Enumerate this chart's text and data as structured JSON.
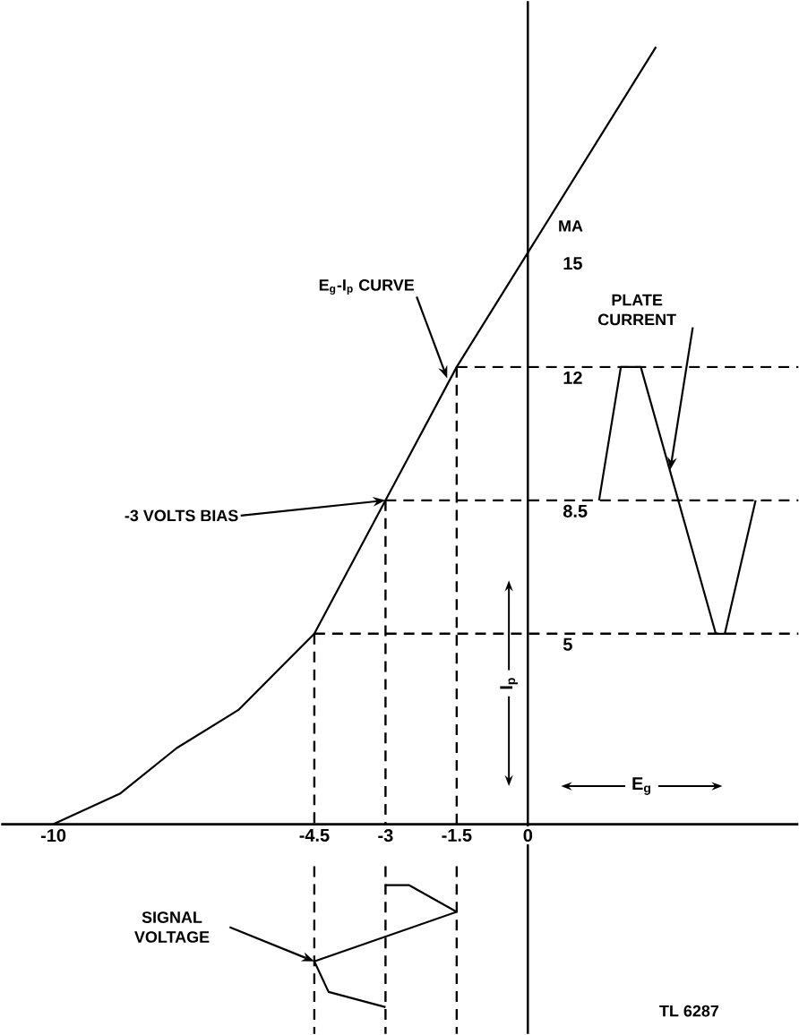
{
  "chart_data": {
    "type": "line",
    "xlabel": "E$_{g}$",
    "ylabel": "I$_{p}$",
    "xlim": [
      -11.1,
      5.7
    ],
    "ylim": [
      -5.5,
      21.6
    ],
    "xticks": [
      -10,
      -4.5,
      -3,
      -1.5,
      0
    ],
    "yticks": [
      5,
      8.5,
      12,
      15
    ],
    "series": [
      {
        "color": "#000000",
        "x": [
          -10,
          -8.6,
          -7.4,
          -6.1,
          -4.5,
          -3,
          -1.5,
          0,
          2.7
        ],
        "values": [
          0,
          0.8,
          2.0,
          3.0,
          5,
          8.5,
          12,
          15,
          20.4
        ]
      },
      {
        "color": "#000000",
        "x": [
          1.5,
          1.96,
          2.38,
          3.96,
          4.15,
          4.8
        ],
        "values": [
          8.5,
          12,
          12,
          5,
          5,
          8.5
        ]
      },
      {
        "color": "#000000",
        "x": [
          -3,
          -2.5,
          -1.5,
          -4.5,
          -4.2,
          -3
        ],
        "values": [
          -1.6,
          -1.6,
          -2.3,
          -3.6,
          -4.4,
          -4.8
        ]
      }
    ],
    "ref_lines": [
      {
        "axis": "y",
        "value": 5,
        "color": "#000000",
        "line_style": "dashed"
      },
      {
        "axis": "y",
        "value": 8.5,
        "color": "#000000",
        "line_style": "dashed"
      },
      {
        "axis": "y",
        "value": 12,
        "color": "#000000",
        "line_style": "dashed"
      },
      {
        "axis": "x",
        "value": -4.5,
        "color": "#000000",
        "line_style": "dashed"
      },
      {
        "axis": "x",
        "value": -3,
        "color": "#000000",
        "line_style": "dashed"
      },
      {
        "axis": "x",
        "value": -1.5,
        "color": "#000000",
        "line_style": "dashed"
      }
    ],
    "annotations": [
      {
        "text": "E$_{g}$-I$_{p}$ CURVE",
        "x": -1.7,
        "y": 11.7
      },
      {
        "text": "-3 VOLTS BIAS",
        "x": -3,
        "y": 8.5
      },
      {
        "text": "PLATE CURRENT",
        "x": 3.0,
        "y": 9.3
      },
      {
        "text": "SIGNAL VOLTAGE",
        "x": -4.5,
        "y": -3.6
      },
      "MA",
      "TL 6287"
    ],
    "grid": false,
    "marker": "none",
    "line_style": "solid"
  }
}
